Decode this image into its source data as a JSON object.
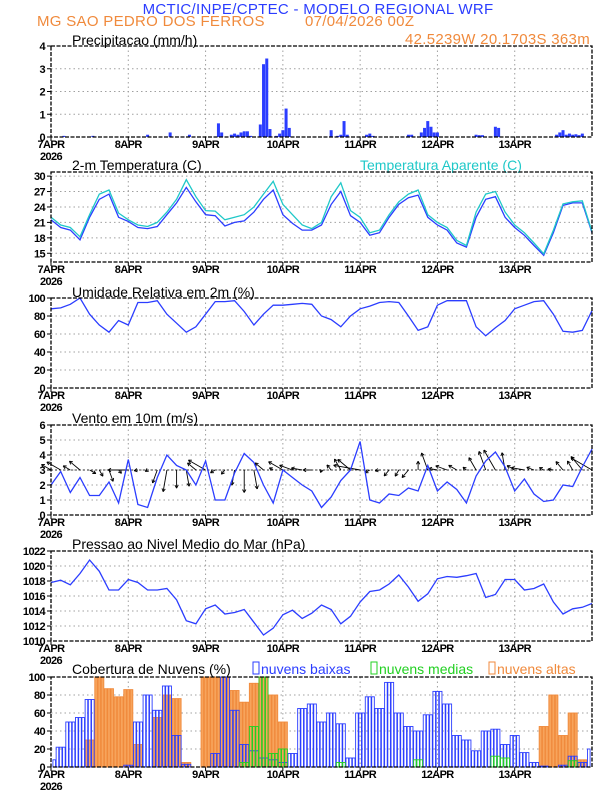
{
  "header": {
    "title": "MCTIC/INPE/CPTEC - MODELO REGIONAL WRF",
    "location": "MG SAO PEDRO DOS FERROS",
    "run": "07/04/2026 00Z",
    "coords": "42.5239W 20.1703S 363m"
  },
  "colors": {
    "blue": "#2b3dff",
    "cyan": "#1fc8c8",
    "orange": "#f08a3c",
    "orange_fill": "#f7a45c",
    "green": "#22d022",
    "grid": "#a0a0a0"
  },
  "time_axis": {
    "day_labels": [
      "7APR",
      "8APR",
      "9APR",
      "10APR",
      "11APR",
      "12APR",
      "13APR"
    ],
    "year": "2026",
    "times": [
      "07APR00Z",
      "07APR03Z",
      "07APR06Z",
      "07APR09Z",
      "07APR12Z",
      "07APR15Z",
      "07APR18Z",
      "07APR21Z",
      "08APR00Z",
      "08APR03Z",
      "08APR06Z",
      "08APR09Z",
      "08APR12Z",
      "08APR15Z",
      "08APR18Z",
      "08APR21Z",
      "09APR00Z",
      "09APR03Z",
      "09APR06Z",
      "09APR09Z",
      "09APR12Z",
      "09APR15Z",
      "09APR18Z",
      "09APR21Z",
      "10APR00Z",
      "10APR03Z",
      "10APR06Z",
      "10APR09Z",
      "10APR12Z",
      "10APR15Z",
      "10APR18Z",
      "10APR21Z",
      "11APR00Z",
      "11APR03Z",
      "11APR06Z",
      "11APR09Z",
      "11APR12Z",
      "11APR15Z",
      "11APR18Z",
      "11APR21Z",
      "12APR00Z",
      "12APR03Z",
      "12APR06Z",
      "12APR09Z",
      "12APR12Z",
      "12APR15Z",
      "12APR18Z",
      "12APR21Z",
      "13APR00Z",
      "13APR03Z",
      "13APR06Z",
      "13APR09Z",
      "13APR12Z",
      "13APR15Z",
      "13APR18Z",
      "13APR21Z",
      "14APR00Z"
    ]
  },
  "chart_data": [
    {
      "type": "bar",
      "title": "Precipitacao (mm/h)",
      "ylim": [
        0,
        4
      ],
      "yticks": [
        "0",
        "1",
        "2",
        "3",
        "4"
      ],
      "grid": true,
      "points": [
        {
          "time": "07APR04Z",
          "value": 0.05
        },
        {
          "time": "07APR13Z",
          "value": 0.05
        },
        {
          "time": "08APR06Z",
          "value": 0.1
        },
        {
          "time": "08APR13Z",
          "value": 0.2
        },
        {
          "time": "08APR19Z",
          "value": 0.1
        },
        {
          "time": "09APR04Z",
          "value": 0.6
        },
        {
          "time": "09APR05Z",
          "value": 0.2
        },
        {
          "time": "09APR08Z",
          "value": 0.1
        },
        {
          "time": "09APR09Z",
          "value": 0.15
        },
        {
          "time": "09APR10Z",
          "value": 0.1
        },
        {
          "time": "09APR11Z",
          "value": 0.2
        },
        {
          "time": "09APR12Z",
          "value": 0.25
        },
        {
          "time": "09APR13Z",
          "value": 0.25
        },
        {
          "time": "09APR14Z",
          "value": 0.05
        },
        {
          "time": "09APR17Z",
          "value": 0.55
        },
        {
          "time": "09APR18Z",
          "value": 3.2
        },
        {
          "time": "09APR19Z",
          "value": 3.45
        },
        {
          "time": "09APR20Z",
          "value": 0.35
        },
        {
          "time": "09APR22Z",
          "value": 0.05
        },
        {
          "time": "09APR23Z",
          "value": 0.15
        },
        {
          "time": "10APR00Z",
          "value": 0.3
        },
        {
          "time": "10APR01Z",
          "value": 1.25
        },
        {
          "time": "10APR02Z",
          "value": 0.4
        },
        {
          "time": "10APR15Z",
          "value": 0.3
        },
        {
          "time": "10APR17Z",
          "value": 0.05
        },
        {
          "time": "10APR18Z",
          "value": 0.1
        },
        {
          "time": "10APR19Z",
          "value": 0.7
        },
        {
          "time": "10APR20Z",
          "value": 0.1
        },
        {
          "time": "11APR02Z",
          "value": 0.1
        },
        {
          "time": "11APR03Z",
          "value": 0.15
        },
        {
          "time": "11APR04Z",
          "value": 0.05
        },
        {
          "time": "11APR15Z",
          "value": 0.1
        },
        {
          "time": "11APR16Z",
          "value": 0.1
        },
        {
          "time": "11APR19Z",
          "value": 0.2
        },
        {
          "time": "11APR20Z",
          "value": 0.4
        },
        {
          "time": "11APR21Z",
          "value": 0.7
        },
        {
          "time": "11APR22Z",
          "value": 0.45
        },
        {
          "time": "11APR23Z",
          "value": 0.2
        },
        {
          "time": "12APR00Z",
          "value": 0.2
        },
        {
          "time": "12APR12Z",
          "value": 0.1
        },
        {
          "time": "12APR13Z",
          "value": 0.08
        },
        {
          "time": "12APR14Z",
          "value": 0.08
        },
        {
          "time": "12APR18Z",
          "value": 0.45
        },
        {
          "time": "12APR19Z",
          "value": 0.4
        },
        {
          "time": "13APR13Z",
          "value": 0.1
        },
        {
          "time": "13APR14Z",
          "value": 0.2
        },
        {
          "time": "13APR15Z",
          "value": 0.3
        },
        {
          "time": "13APR16Z",
          "value": 0.1
        },
        {
          "time": "13APR17Z",
          "value": 0.15
        },
        {
          "time": "13APR18Z",
          "value": 0.1
        },
        {
          "time": "13APR19Z",
          "value": 0.12
        },
        {
          "time": "13APR20Z",
          "value": 0.08
        },
        {
          "time": "13APR21Z",
          "value": 0.15
        }
      ]
    },
    {
      "type": "line",
      "title": "2-m Temperatura (C)",
      "ylim": [
        13.3,
        30.8
      ],
      "yticks": [
        "15",
        "18",
        "21",
        "24",
        "27",
        "30"
      ],
      "grid": true,
      "series": [
        {
          "name": "",
          "color": "blue",
          "values": [
            21.5,
            20,
            19.5,
            17.6,
            22,
            25.5,
            26.5,
            22,
            21.2,
            20,
            19.8,
            20.2,
            22.5,
            24.8,
            27.8,
            25,
            22.5,
            22.3,
            20.3,
            21,
            21.3,
            23,
            25.5,
            27.3,
            22.5,
            20.8,
            19.5,
            19.5,
            20.5,
            24.5,
            27,
            22.3,
            21,
            18.5,
            19,
            22,
            24.5,
            25.8,
            26.3,
            22,
            20.5,
            19.5,
            17,
            16.2,
            22,
            25.5,
            26,
            22,
            20,
            18.5,
            16.5,
            14.6,
            19,
            24.3,
            24.8,
            24.8,
            19
          ]
        },
        {
          "name": "Temperatura Aparente (C)",
          "color": "cyan",
          "values": [
            22,
            20.5,
            20,
            18.2,
            22.5,
            26.5,
            27.3,
            22.8,
            21.5,
            20.5,
            20.2,
            21,
            23,
            25.5,
            29.3,
            26,
            23.3,
            23.2,
            21.5,
            22,
            22.5,
            24,
            26.5,
            29,
            24.5,
            22.5,
            20.5,
            19.8,
            21,
            26,
            28.7,
            23.3,
            22,
            19,
            19.5,
            22.5,
            25,
            26.5,
            27.3,
            22.5,
            21,
            20,
            17.5,
            16.5,
            23,
            26.5,
            27,
            23,
            20.5,
            19,
            17,
            14.9,
            19.5,
            24.6,
            25,
            25.2,
            19.2
          ]
        }
      ]
    },
    {
      "type": "line",
      "title": "Umidade Relativa em 2m (%)",
      "ylim": [
        0,
        100
      ],
      "yticks": [
        "0",
        "20",
        "40",
        "60",
        "80",
        "100"
      ],
      "grid": true,
      "series": [
        {
          "name": "",
          "color": "blue",
          "values": [
            88,
            89,
            93,
            100,
            82,
            70,
            62,
            75,
            70,
            95,
            95,
            97,
            82,
            72,
            62,
            68,
            82,
            96,
            96,
            97,
            85,
            70,
            82,
            92,
            92,
            93,
            94,
            93,
            80,
            76,
            68,
            80,
            88,
            91,
            95,
            96,
            95,
            80,
            64,
            68,
            92,
            97,
            97,
            97,
            68,
            58,
            67,
            75,
            88,
            92,
            96,
            97,
            82,
            63,
            62,
            64,
            86
          ]
        }
      ]
    },
    {
      "type": "line",
      "title": "Vento em 10m (m/s)",
      "ylim": [
        0,
        6
      ],
      "yticks": [
        "0",
        "1",
        "2",
        "3",
        "4",
        "5",
        "6"
      ],
      "grid": true,
      "series": [
        {
          "name": "",
          "color": "blue",
          "values": [
            2.0,
            2.9,
            1.5,
            2.5,
            1.3,
            1.3,
            2.2,
            0.8,
            3.7,
            0.7,
            0.5,
            2.5,
            4.0,
            3.3,
            3.0,
            2.0,
            3.6,
            1.0,
            1.0,
            2.8,
            4.1,
            3.5,
            2.0,
            0.8,
            3.0,
            2.5,
            2.0,
            1.6,
            0.5,
            1.2,
            2.3,
            3.0,
            4.9,
            1.0,
            0.8,
            1.4,
            1.3,
            1.8,
            1.6,
            3.3,
            1.6,
            2.2,
            1.7,
            0.8,
            2.6,
            3.6,
            4.2,
            3.2,
            1.6,
            2.4,
            1.4,
            0.9,
            1.0,
            2.0,
            1.9,
            3.2,
            4.4
          ]
        }
      ],
      "wind_direction_deg": [
        120,
        120,
        120,
        130,
        300,
        330,
        340,
        320,
        90,
        80,
        60,
        20,
        10,
        0,
        350,
        130,
        120,
        60,
        40,
        10,
        0,
        350,
        130,
        120,
        120,
        110,
        100,
        90,
        20,
        140,
        150,
        130,
        100,
        60,
        80,
        40,
        30,
        40,
        180,
        160,
        100,
        110,
        120,
        130,
        150,
        160,
        150,
        170,
        120,
        100,
        110,
        120,
        100,
        140,
        150,
        140,
        120
      ]
    },
    {
      "type": "line",
      "title": "Pressao ao Nivel Medio do Mar (hPa)",
      "ylim": [
        1010,
        1022
      ],
      "yticks": [
        "1010",
        "1012",
        "1014",
        "1016",
        "1018",
        "1020",
        "1022"
      ],
      "grid": true,
      "series": [
        {
          "name": "",
          "color": "blue",
          "values": [
            1017.8,
            1018.1,
            1017.5,
            1019,
            1020.8,
            1019.3,
            1016.8,
            1016.8,
            1018.2,
            1017.8,
            1016.8,
            1016.8,
            1017,
            1015.5,
            1012.7,
            1012.3,
            1014.3,
            1014.8,
            1013.6,
            1013.8,
            1014.2,
            1012.5,
            1010.8,
            1011.7,
            1013.5,
            1014.1,
            1013,
            1013.7,
            1014.8,
            1014.2,
            1012.3,
            1013.3,
            1015.2,
            1016.6,
            1016.8,
            1017.6,
            1018.8,
            1017.2,
            1015.3,
            1016.3,
            1018.3,
            1018.6,
            1018.5,
            1018.7,
            1019,
            1015.8,
            1016.2,
            1018.2,
            1018.2,
            1016.8,
            1017,
            1017.6,
            1015.2,
            1013.6,
            1014.3,
            1014.5,
            1015
          ]
        }
      ]
    },
    {
      "type": "bar",
      "title": "Cobertura de Nuvens (%)",
      "ylim": [
        0,
        100
      ],
      "yticks": [
        "0",
        "20",
        "40",
        "60",
        "80",
        "100"
      ],
      "grid": true,
      "legend": "top",
      "series": [
        {
          "name": "nuvens altas",
          "color": "orange",
          "values": [
            0,
            0,
            0,
            0,
            30,
            100,
            87,
            78,
            86,
            25,
            0,
            55,
            80,
            76,
            5,
            0,
            100,
            100,
            100,
            85,
            72,
            93,
            100,
            80,
            50,
            0,
            0,
            0,
            0,
            0,
            0,
            0,
            0,
            0,
            0,
            0,
            0,
            0,
            0,
            0,
            0,
            0,
            0,
            0,
            0,
            0,
            0,
            0,
            0,
            0,
            0,
            45,
            80,
            35,
            60,
            8,
            0
          ]
        },
        {
          "name": "nuvens baixas",
          "color": "blue",
          "values": [
            8,
            22,
            50,
            55,
            75,
            0,
            0,
            0,
            2,
            50,
            80,
            63,
            90,
            35,
            3,
            0,
            0,
            15,
            100,
            63,
            25,
            18,
            10,
            8,
            5,
            15,
            65,
            70,
            50,
            60,
            48,
            10,
            60,
            78,
            65,
            94,
            60,
            45,
            40,
            58,
            84,
            70,
            35,
            30,
            18,
            40,
            42,
            25,
            35,
            16,
            5,
            1,
            0,
            2,
            12,
            5,
            20
          ]
        },
        {
          "name": "nuvens medias",
          "color": "green",
          "values": [
            0,
            0,
            0,
            0,
            0,
            0,
            0,
            0,
            0,
            0,
            0,
            0,
            0,
            0,
            0,
            0,
            0,
            0,
            0,
            0,
            5,
            45,
            100,
            15,
            20,
            0,
            0,
            0,
            0,
            0,
            5,
            0,
            0,
            0,
            0,
            0,
            0,
            0,
            8,
            0,
            0,
            0,
            0,
            0,
            0,
            0,
            12,
            10,
            0,
            0,
            0,
            0,
            0,
            0,
            7,
            0,
            0
          ]
        }
      ],
      "legend_order": [
        "nuvens baixas",
        "nuvens medias",
        "nuvens altas"
      ]
    }
  ]
}
